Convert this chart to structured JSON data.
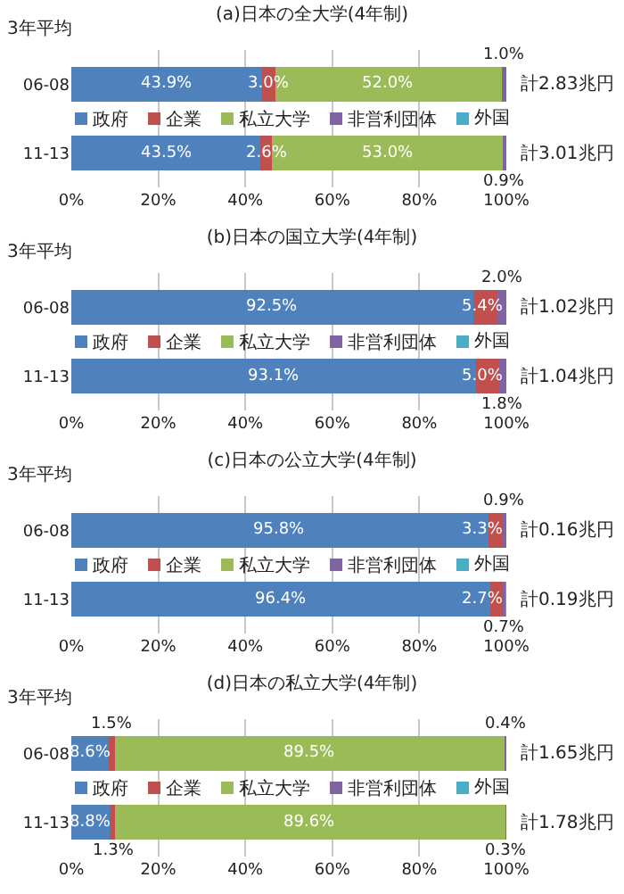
{
  "chart_data": [
    {
      "type": "bar",
      "orientation": "horizontal",
      "stacked": true,
      "title": "(a)日本の全大学(4年制)",
      "ylabel": "3年平均",
      "categories": [
        "06-08",
        "11-13"
      ],
      "series": [
        {
          "name": "政府",
          "color": "#4f81bd",
          "values": [
            43.9,
            43.5
          ],
          "value_labels": [
            "43.9%",
            "43.5%"
          ]
        },
        {
          "name": "企業",
          "color": "#c0504d",
          "values": [
            3.0,
            2.6
          ],
          "value_labels": [
            "3.0%",
            "2.6%"
          ]
        },
        {
          "name": "私立大学",
          "color": "#9bbb59",
          "values": [
            52.0,
            53.0
          ],
          "value_labels": [
            "52.0%",
            "53.0%"
          ]
        },
        {
          "name": "非営利団体",
          "color": "#8064a2",
          "values": [
            1.0,
            0.9
          ],
          "value_labels": [
            "1.0%",
            "0.9%"
          ]
        },
        {
          "name": "外国",
          "color": "#4bacc6",
          "values": [
            0.1,
            0.0
          ],
          "value_labels": [
            null,
            null
          ]
        }
      ],
      "totals": [
        "計2.83兆円",
        "計3.01兆円"
      ],
      "xlim": [
        0,
        100
      ],
      "xticks": [
        {
          "value": 0,
          "label": "0%"
        },
        {
          "value": 20,
          "label": "20%"
        },
        {
          "value": 40,
          "label": "40%"
        },
        {
          "value": 60,
          "label": "60%"
        },
        {
          "value": 80,
          "label": "80%"
        },
        {
          "value": 100,
          "label": "100%"
        }
      ],
      "grid": "x",
      "legend": "center"
    },
    {
      "type": "bar",
      "orientation": "horizontal",
      "stacked": true,
      "title": "(b)日本の国立大学(4年制)",
      "ylabel": "3年平均",
      "categories": [
        "06-08",
        "11-13"
      ],
      "series": [
        {
          "name": "政府",
          "color": "#4f81bd",
          "values": [
            92.5,
            93.1
          ],
          "value_labels": [
            "92.5%",
            "93.1%"
          ]
        },
        {
          "name": "企業",
          "color": "#c0504d",
          "values": [
            5.4,
            5.0
          ],
          "value_labels": [
            "5.4%",
            "5.0%"
          ]
        },
        {
          "name": "私立大学",
          "color": "#9bbb59",
          "values": [
            0,
            0
          ],
          "value_labels": [
            null,
            null
          ]
        },
        {
          "name": "非営利団体",
          "color": "#8064a2",
          "values": [
            2.0,
            1.8
          ],
          "value_labels": [
            "2.0%",
            "1.8%"
          ]
        },
        {
          "name": "外国",
          "color": "#4bacc6",
          "values": [
            0.1,
            0.1
          ],
          "value_labels": [
            null,
            null
          ]
        }
      ],
      "totals": [
        "計1.02兆円",
        "計1.04兆円"
      ],
      "xlim": [
        0,
        100
      ],
      "xticks": [
        {
          "value": 0,
          "label": "0%"
        },
        {
          "value": 20,
          "label": "20%"
        },
        {
          "value": 40,
          "label": "40%"
        },
        {
          "value": 60,
          "label": "60%"
        },
        {
          "value": 80,
          "label": "80%"
        },
        {
          "value": 100,
          "label": "100%"
        }
      ],
      "grid": "x",
      "legend": "center"
    },
    {
      "type": "bar",
      "orientation": "horizontal",
      "stacked": true,
      "title": "(c)日本の公立大学(4年制)",
      "ylabel": "3年平均",
      "categories": [
        "06-08",
        "11-13"
      ],
      "series": [
        {
          "name": "政府",
          "color": "#4f81bd",
          "values": [
            95.8,
            96.4
          ],
          "value_labels": [
            "95.8%",
            "96.4%"
          ]
        },
        {
          "name": "企業",
          "color": "#c0504d",
          "values": [
            3.3,
            2.7
          ],
          "value_labels": [
            "3.3%",
            "2.7%"
          ]
        },
        {
          "name": "私立大学",
          "color": "#9bbb59",
          "values": [
            0,
            0
          ],
          "value_labels": [
            null,
            null
          ]
        },
        {
          "name": "非営利団体",
          "color": "#8064a2",
          "values": [
            0.9,
            0.7
          ],
          "value_labels": [
            "0.9%",
            "0.7%"
          ]
        },
        {
          "name": "外国",
          "color": "#4bacc6",
          "values": [
            0.0,
            0.2
          ],
          "value_labels": [
            null,
            null
          ]
        }
      ],
      "totals": [
        "計0.16兆円",
        "計0.19兆円"
      ],
      "xlim": [
        0,
        100
      ],
      "xticks": [
        {
          "value": 0,
          "label": "0%"
        },
        {
          "value": 20,
          "label": "20%"
        },
        {
          "value": 40,
          "label": "40%"
        },
        {
          "value": 60,
          "label": "60%"
        },
        {
          "value": 80,
          "label": "80%"
        },
        {
          "value": 100,
          "label": "100%"
        }
      ],
      "grid": "x",
      "legend": "center"
    },
    {
      "type": "bar",
      "orientation": "horizontal",
      "stacked": true,
      "title": "(d)日本の私立大学(4年制)",
      "ylabel": "3年平均",
      "categories": [
        "06-08",
        "11-13"
      ],
      "series": [
        {
          "name": "政府",
          "color": "#4f81bd",
          "values": [
            8.6,
            8.8
          ],
          "value_labels": [
            "8.6%",
            "8.8%"
          ]
        },
        {
          "name": "企業",
          "color": "#c0504d",
          "values": [
            1.5,
            1.3
          ],
          "value_labels": [
            "1.5%",
            "1.3%"
          ]
        },
        {
          "name": "私立大学",
          "color": "#9bbb59",
          "values": [
            89.5,
            89.6
          ],
          "value_labels": [
            "89.5%",
            "89.6%"
          ]
        },
        {
          "name": "非営利団体",
          "color": "#8064a2",
          "values": [
            0.4,
            0.3
          ],
          "value_labels": [
            "0.4%",
            "0.3%"
          ]
        },
        {
          "name": "外国",
          "color": "#4bacc6",
          "values": [
            0.0,
            0.0
          ],
          "value_labels": [
            null,
            null
          ]
        }
      ],
      "totals": [
        "計1.65兆円",
        "計1.78兆円"
      ],
      "xlim": [
        0,
        100
      ],
      "xticks": [
        {
          "value": 0,
          "label": "0%"
        },
        {
          "value": 20,
          "label": "20%"
        },
        {
          "value": 40,
          "label": "40%"
        },
        {
          "value": 60,
          "label": "60%"
        },
        {
          "value": 80,
          "label": "80%"
        },
        {
          "value": 100,
          "label": "100%"
        }
      ],
      "grid": "x",
      "legend": "center"
    }
  ]
}
